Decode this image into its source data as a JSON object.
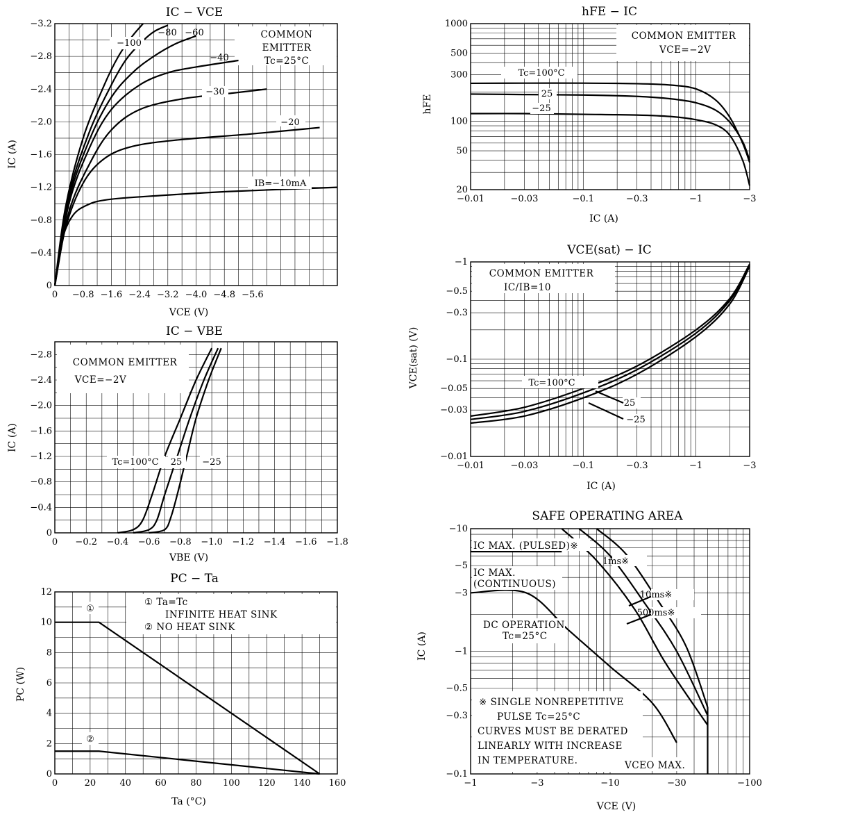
{
  "chart_data": [
    {
      "id": "ic_vce",
      "type": "line",
      "title": "IC − VCE",
      "xlabel": "VCE (V)",
      "ylabel": "IC (A)",
      "xlim": [
        0,
        -8.0
      ],
      "ylim": [
        0,
        -3.2
      ],
      "x_ticks": [
        "0",
        "−0.8",
        "−1.6",
        "−2.4",
        "−3.2",
        "−4.0",
        "−4.8",
        "−5.6"
      ],
      "y_ticks": [
        "0",
        "−0.4",
        "−0.8",
        "−1.2",
        "−1.6",
        "−2.0",
        "−2.4",
        "−2.8",
        "−3.2"
      ],
      "notes": [
        "COMMON",
        "EMITTER",
        "Tc=25°C"
      ],
      "series": [
        {
          "name": "IB=−10mA",
          "x": [
            0,
            -0.2,
            -0.5,
            -0.9,
            -1.5,
            -3.0,
            -5.0,
            -8.0
          ],
          "y": [
            0,
            -0.55,
            -0.85,
            -0.98,
            -1.05,
            -1.1,
            -1.15,
            -1.2
          ]
        },
        {
          "name": "−20",
          "x": [
            0,
            -0.3,
            -0.8,
            -1.4,
            -2.2,
            -3.5,
            -5.5,
            -7.5
          ],
          "y": [
            0,
            -0.7,
            -1.25,
            -1.55,
            -1.7,
            -1.78,
            -1.85,
            -1.93
          ]
        },
        {
          "name": "−30",
          "x": [
            0,
            -0.4,
            -1.0,
            -1.6,
            -2.4,
            -3.6,
            -5.0,
            -6.0
          ],
          "y": [
            0,
            -0.9,
            -1.5,
            -1.9,
            -2.15,
            -2.28,
            -2.35,
            -2.4
          ]
        },
        {
          "name": "−40",
          "x": [
            0,
            -0.4,
            -1.0,
            -1.6,
            -2.4,
            -3.2,
            -4.0,
            -5.2
          ],
          "y": [
            0,
            -1.0,
            -1.7,
            -2.15,
            -2.45,
            -2.6,
            -2.67,
            -2.75
          ]
        },
        {
          "name": "−60",
          "x": [
            0,
            -0.4,
            -1.0,
            -1.6,
            -2.2,
            -2.8,
            -3.4,
            -4.0
          ],
          "y": [
            0,
            -1.05,
            -1.8,
            -2.3,
            -2.6,
            -2.8,
            -2.95,
            -3.05
          ]
        },
        {
          "name": "−80",
          "x": [
            0,
            -0.4,
            -1.0,
            -1.6,
            -2.0,
            -2.4,
            -2.8,
            -3.2
          ],
          "y": [
            0,
            -1.1,
            -1.9,
            -2.45,
            -2.75,
            -2.95,
            -3.1,
            -3.18
          ]
        },
        {
          "name": "−100",
          "x": [
            0,
            -0.3,
            -0.8,
            -1.4,
            -1.8,
            -2.2,
            -2.5
          ],
          "y": [
            0,
            -0.95,
            -1.8,
            -2.45,
            -2.8,
            -3.05,
            -3.2
          ]
        }
      ],
      "curve_labels": [
        "−100",
        "−80",
        "−60",
        "−40",
        "−30",
        "−20",
        "IB=−10mA"
      ]
    },
    {
      "id": "hfe_ic",
      "type": "line",
      "title": "hFE − IC",
      "xlabel": "IC (A)",
      "ylabel": "hFE",
      "xscale": "log",
      "yscale": "log",
      "xlim": [
        -0.01,
        -3
      ],
      "ylim": [
        20,
        1000
      ],
      "x_ticks": [
        "−0.01",
        "−0.03",
        "−0.1",
        "−0.3",
        "−1",
        "−3"
      ],
      "y_ticks": [
        "20",
        "50",
        "100",
        "300",
        "500",
        "1000"
      ],
      "notes": [
        "COMMON EMITTER",
        "VCE=−2V"
      ],
      "series": [
        {
          "name": "Tc=100°C",
          "x": [
            -0.01,
            -0.03,
            -0.1,
            -0.3,
            -0.6,
            -1.0,
            -1.5,
            -2.0,
            -2.6,
            -3.0
          ],
          "y": [
            245,
            246,
            246,
            243,
            235,
            215,
            165,
            110,
            60,
            38
          ]
        },
        {
          "name": "25",
          "x": [
            -0.01,
            -0.03,
            -0.1,
            -0.3,
            -0.6,
            -1.0,
            -1.5,
            -2.0,
            -2.6,
            -3.0
          ],
          "y": [
            190,
            188,
            186,
            180,
            170,
            155,
            130,
            98,
            62,
            40
          ]
        },
        {
          "name": "−25",
          "x": [
            -0.01,
            -0.03,
            -0.1,
            -0.3,
            -0.6,
            -1.0,
            -1.5,
            -2.0,
            -2.6,
            -3.0
          ],
          "y": [
            120,
            120,
            118,
            116,
            112,
            104,
            92,
            72,
            40,
            22
          ]
        }
      ],
      "curve_labels": [
        "Tc=100°C",
        "25",
        "−25"
      ]
    },
    {
      "id": "vcesat_ic",
      "type": "line",
      "title": "VCE(sat) − IC",
      "xlabel": "IC (A)",
      "ylabel": "VCE(sat) (V)",
      "xscale": "log",
      "yscale": "log",
      "xlim": [
        -0.01,
        -3
      ],
      "ylim": [
        -0.01,
        -1
      ],
      "x_ticks": [
        "−0.01",
        "−0.03",
        "−0.1",
        "−0.3",
        "−1",
        "−3"
      ],
      "y_ticks": [
        "−0.01",
        "−0.03",
        "−0.05",
        "−0.1",
        "−0.3",
        "−0.5",
        "−1"
      ],
      "notes": [
        "COMMON EMITTER",
        "IC/IB=10"
      ],
      "series": [
        {
          "name": "Tc=100°C",
          "x": [
            -0.01,
            -0.03,
            -0.1,
            -0.3,
            -1.0,
            -2.0,
            -3.0
          ],
          "y": [
            -0.026,
            -0.032,
            -0.05,
            -0.085,
            -0.2,
            -0.42,
            -0.95
          ]
        },
        {
          "name": "25",
          "x": [
            -0.01,
            -0.03,
            -0.1,
            -0.3,
            -1.0,
            -2.0,
            -3.0
          ],
          "y": [
            -0.024,
            -0.029,
            -0.045,
            -0.078,
            -0.185,
            -0.4,
            -0.92
          ]
        },
        {
          "name": "−25",
          "x": [
            -0.01,
            -0.03,
            -0.1,
            -0.3,
            -1.0,
            -2.0,
            -3.0
          ],
          "y": [
            -0.022,
            -0.026,
            -0.04,
            -0.07,
            -0.17,
            -0.37,
            -0.9
          ]
        }
      ],
      "curve_labels": [
        "Tc=100°C",
        "25",
        "−25"
      ]
    },
    {
      "id": "ic_vbe",
      "type": "line",
      "title": "IC − VBE",
      "xlabel": "VBE (V)",
      "ylabel": "IC (A)",
      "xlim": [
        0,
        -1.8
      ],
      "ylim": [
        0,
        -3.0
      ],
      "x_ticks": [
        "0",
        "−0.2",
        "−0.4",
        "−0.6",
        "−0.8",
        "−1.0",
        "−1.2",
        "−1.4",
        "−1.6",
        "−1.8"
      ],
      "y_ticks": [
        "0",
        "−0.4",
        "−0.8",
        "−1.2",
        "−1.6",
        "−2.0",
        "−2.4",
        "−2.8"
      ],
      "notes": [
        "COMMON EMITTER",
        "VCE=−2V"
      ],
      "series": [
        {
          "name": "Tc=100°C",
          "x": [
            -0.4,
            -0.5,
            -0.56,
            -0.62,
            -0.7,
            -0.8,
            -0.9,
            -1.0
          ],
          "y": [
            0,
            -0.05,
            -0.2,
            -0.6,
            -1.2,
            -1.8,
            -2.4,
            -2.9
          ]
        },
        {
          "name": "25",
          "x": [
            -0.5,
            -0.6,
            -0.65,
            -0.7,
            -0.78,
            -0.86,
            -0.95,
            -1.04
          ],
          "y": [
            0,
            -0.05,
            -0.2,
            -0.6,
            -1.2,
            -1.8,
            -2.4,
            -2.9
          ]
        },
        {
          "name": "−25",
          "x": [
            -0.6,
            -0.7,
            -0.74,
            -0.78,
            -0.84,
            -0.9,
            -0.98,
            -1.06
          ],
          "y": [
            0,
            -0.05,
            -0.25,
            -0.6,
            -1.2,
            -1.8,
            -2.4,
            -2.9
          ]
        }
      ],
      "curve_labels": [
        "Tc=100°C",
        "25",
        "−25"
      ]
    },
    {
      "id": "pc_ta",
      "type": "line",
      "title": "PC − Ta",
      "xlabel": "Ta (°C)",
      "ylabel": "PC (W)",
      "xlim": [
        0,
        160
      ],
      "ylim": [
        0,
        12
      ],
      "x_ticks": [
        "0",
        "20",
        "40",
        "60",
        "80",
        "100",
        "120",
        "140",
        "160"
      ],
      "y_ticks": [
        "0",
        "2",
        "4",
        "6",
        "8",
        "10",
        "12"
      ],
      "notes": [
        "①  Ta=Tc",
        "INFINITE HEAT SINK",
        "②  NO HEAT SINK"
      ],
      "series": [
        {
          "name": "①",
          "x": [
            0,
            25,
            150
          ],
          "y": [
            10,
            10,
            0
          ]
        },
        {
          "name": "②",
          "x": [
            0,
            25,
            150
          ],
          "y": [
            1.5,
            1.5,
            0
          ]
        }
      ],
      "curve_labels": [
        "①",
        "②"
      ]
    },
    {
      "id": "soa",
      "type": "line",
      "title": "SAFE OPERATING AREA",
      "xlabel": "VCE (V)",
      "ylabel": "IC (A)",
      "xscale": "log",
      "yscale": "log",
      "xlim": [
        -1,
        -100
      ],
      "ylim": [
        -0.1,
        -10
      ],
      "x_ticks": [
        "−1",
        "−3",
        "−10",
        "−30",
        "−100"
      ],
      "y_ticks": [
        "−0.1",
        "−0.3",
        "−0.5",
        "−1",
        "−3",
        "−5",
        "−10"
      ],
      "notes": [
        "IC MAX. (PULSED)※",
        "IC MAX.",
        "(CONTINUOUS)",
        "DC OPERATION",
        "Tc=25°C",
        "※  SINGLE NONREPETITIVE",
        "PULSE  Tc=25°C",
        "CURVES MUST BE DERATED",
        "LINEARLY WITH INCREASE",
        "IN TEMPERATURE.",
        "VCEO MAX."
      ],
      "series": [
        {
          "name": "DC OPERATION Tc=25°C",
          "x": [
            -1,
            -2.5,
            -5,
            -10,
            -20,
            -30
          ],
          "y": [
            -3,
            -3,
            -1.5,
            -0.75,
            -0.38,
            -0.18
          ]
        },
        {
          "name": "500ms※",
          "x": [
            -4.5,
            -8,
            -15,
            -25,
            -50
          ],
          "y": [
            -10,
            -5.5,
            -2.2,
            -0.8,
            -0.25
          ]
        },
        {
          "name": "10ms※",
          "x": [
            -6,
            -10,
            -18,
            -30,
            -50
          ],
          "y": [
            -10,
            -6,
            -2.4,
            -1.0,
            -0.3
          ]
        },
        {
          "name": "1ms※",
          "x": [
            -8,
            -13,
            -22,
            -35,
            -50
          ],
          "y": [
            -10,
            -6.2,
            -2.6,
            -1.1,
            -0.35
          ]
        }
      ],
      "limits": {
        "ic_pulsed": -6.5,
        "ic_continuous": -3,
        "vceo_max": -50
      },
      "curve_labels": [
        "1ms※",
        "10ms※",
        "500ms※"
      ]
    }
  ]
}
